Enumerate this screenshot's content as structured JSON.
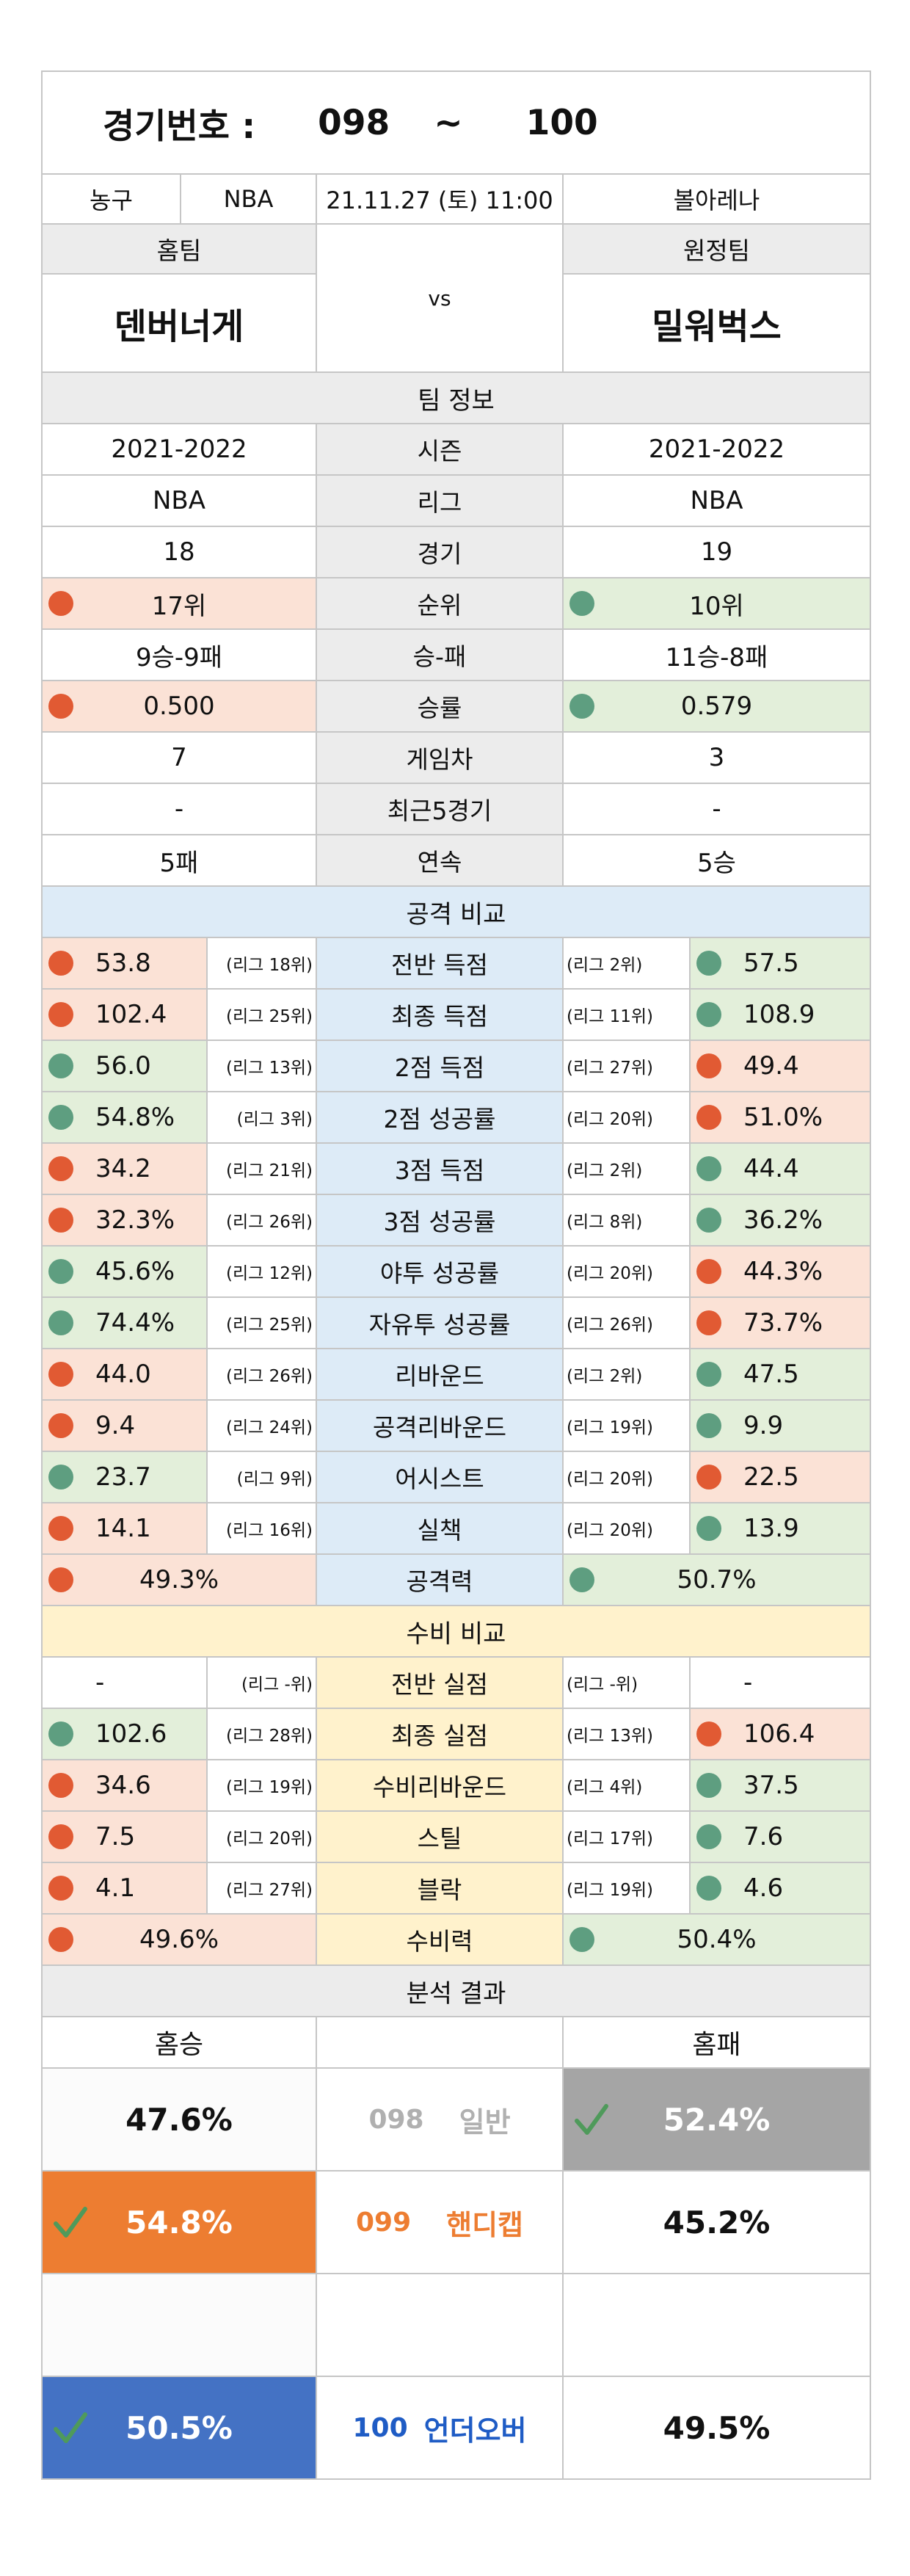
{
  "header": {
    "game_label": "경기번호 :",
    "game_from": "098",
    "game_sep": "~",
    "game_to": "100"
  },
  "match": {
    "sport": "농구",
    "league": "NBA",
    "datetime": "21.11.27 (토) 11:00",
    "venue": "볼아레나",
    "home_label": "홈팀",
    "away_label": "원정팀",
    "home_team": "덴버너게",
    "away_team": "밀워벅스",
    "vs": "vs"
  },
  "team_info": {
    "title": "팀 정보",
    "rows": [
      {
        "label": "시즌",
        "home": "2021-2022",
        "away": "2021-2022"
      },
      {
        "label": "리그",
        "home": "NBA",
        "away": "NBA"
      },
      {
        "label": "경기",
        "home": "18",
        "away": "19"
      },
      {
        "label": "순위",
        "home": "17위",
        "away": "10위",
        "home_dot": "red",
        "away_dot": "teal"
      },
      {
        "label": "승-패",
        "home": "9승-9패",
        "away": "11승-8패"
      },
      {
        "label": "승률",
        "home": "0.500",
        "away": "0.579",
        "home_dot": "red",
        "away_dot": "teal"
      },
      {
        "label": "게임차",
        "home": "7",
        "away": "3"
      },
      {
        "label": "최근5경기",
        "home": "-",
        "away": "-"
      },
      {
        "label": "연속",
        "home": "5패",
        "away": "5승"
      }
    ]
  },
  "attack": {
    "title": "공격 비교",
    "rows": [
      {
        "label": "전반 득점",
        "home": "53.8",
        "home_rank": "(리그 18위)",
        "home_dot": "red",
        "away": "57.5",
        "away_rank": "(리그 2위)",
        "away_dot": "teal"
      },
      {
        "label": "최종 득점",
        "home": "102.4",
        "home_rank": "(리그 25위)",
        "home_dot": "red",
        "away": "108.9",
        "away_rank": "(리그 11위)",
        "away_dot": "teal"
      },
      {
        "label": "2점 득점",
        "home": "56.0",
        "home_rank": "(리그 13위)",
        "home_dot": "teal",
        "away": "49.4",
        "away_rank": "(리그 27위)",
        "away_dot": "red"
      },
      {
        "label": "2점 성공률",
        "home": "54.8%",
        "home_rank": "(리그 3위)",
        "home_dot": "teal",
        "away": "51.0%",
        "away_rank": "(리그 20위)",
        "away_dot": "red"
      },
      {
        "label": "3점 득점",
        "home": "34.2",
        "home_rank": "(리그 21위)",
        "home_dot": "red",
        "away": "44.4",
        "away_rank": "(리그 2위)",
        "away_dot": "teal"
      },
      {
        "label": "3점 성공률",
        "home": "32.3%",
        "home_rank": "(리그 26위)",
        "home_dot": "red",
        "away": "36.2%",
        "away_rank": "(리그 8위)",
        "away_dot": "teal"
      },
      {
        "label": "야투 성공률",
        "home": "45.6%",
        "home_rank": "(리그 12위)",
        "home_dot": "teal",
        "away": "44.3%",
        "away_rank": "(리그 20위)",
        "away_dot": "red"
      },
      {
        "label": "자유투 성공률",
        "home": "74.4%",
        "home_rank": "(리그 25위)",
        "home_dot": "teal",
        "away": "73.7%",
        "away_rank": "(리그 26위)",
        "away_dot": "red"
      },
      {
        "label": "리바운드",
        "home": "44.0",
        "home_rank": "(리그 26위)",
        "home_dot": "red",
        "away": "47.5",
        "away_rank": "(리그 2위)",
        "away_dot": "teal"
      },
      {
        "label": "공격리바운드",
        "home": "9.4",
        "home_rank": "(리그 24위)",
        "home_dot": "red",
        "away": "9.9",
        "away_rank": "(리그 19위)",
        "away_dot": "teal"
      },
      {
        "label": "어시스트",
        "home": "23.7",
        "home_rank": "(리그 9위)",
        "home_dot": "teal",
        "away": "22.5",
        "away_rank": "(리그 20위)",
        "away_dot": "red"
      },
      {
        "label": "실책",
        "home": "14.1",
        "home_rank": "(리그 16위)",
        "home_dot": "red",
        "away": "13.9",
        "away_rank": "(리그 20위)",
        "away_dot": "teal"
      }
    ],
    "summary": {
      "label": "공격력",
      "home": "49.3%",
      "home_dot": "red",
      "away": "50.7%",
      "away_dot": "teal"
    }
  },
  "defense": {
    "title": "수비 비교",
    "rows": [
      {
        "label": "전반 실점",
        "home": "-",
        "home_rank": "(리그 -위)",
        "home_dot": "",
        "away": "-",
        "away_rank": "(리그 -위)",
        "away_dot": ""
      },
      {
        "label": "최종 실점",
        "home": "102.6",
        "home_rank": "(리그 28위)",
        "home_dot": "teal",
        "away": "106.4",
        "away_rank": "(리그 13위)",
        "away_dot": "red"
      },
      {
        "label": "수비리바운드",
        "home": "34.6",
        "home_rank": "(리그 19위)",
        "home_dot": "red",
        "away": "37.5",
        "away_rank": "(리그 4위)",
        "away_dot": "teal"
      },
      {
        "label": "스틸",
        "home": "7.5",
        "home_rank": "(리그 20위)",
        "home_dot": "red",
        "away": "7.6",
        "away_rank": "(리그 17위)",
        "away_dot": "teal"
      },
      {
        "label": "블락",
        "home": "4.1",
        "home_rank": "(리그 27위)",
        "home_dot": "red",
        "away": "4.6",
        "away_rank": "(리그 19위)",
        "away_dot": "teal"
      }
    ],
    "summary": {
      "label": "수비력",
      "home": "49.6%",
      "home_dot": "red",
      "away": "50.4%",
      "away_dot": "teal"
    }
  },
  "analysis": {
    "title": "분석 결과",
    "home_col": "홈승",
    "away_col": "홈패",
    "rows": [
      {
        "code": "098",
        "type": "일반",
        "home": "47.6%",
        "away": "52.4%",
        "pick": "away",
        "pick_color": "#a5a5a5",
        "label_color": "#b0b0b0"
      },
      {
        "code": "099",
        "type": "핸디캡",
        "home": "54.8%",
        "away": "45.2%",
        "pick": "home",
        "pick_color": "#ed7d31",
        "label_color": "#ed7d31"
      },
      {
        "code": "",
        "type": "",
        "home": "",
        "away": "",
        "pick": "",
        "pick_color": "",
        "label_color": ""
      },
      {
        "code": "100",
        "type": "언더오버",
        "home": "50.5%",
        "away": "49.5%",
        "pick": "home",
        "pick_color": "#4472c4",
        "label_color": "#1f5cc5"
      }
    ]
  },
  "colors": {
    "red_dot": "#e15a33",
    "teal_dot": "#5e9e80",
    "pink": "#fbe2d6",
    "green": "#e3efda",
    "blue": "#ddebf7",
    "yellow": "#fff2cc",
    "gray": "#ececec"
  }
}
